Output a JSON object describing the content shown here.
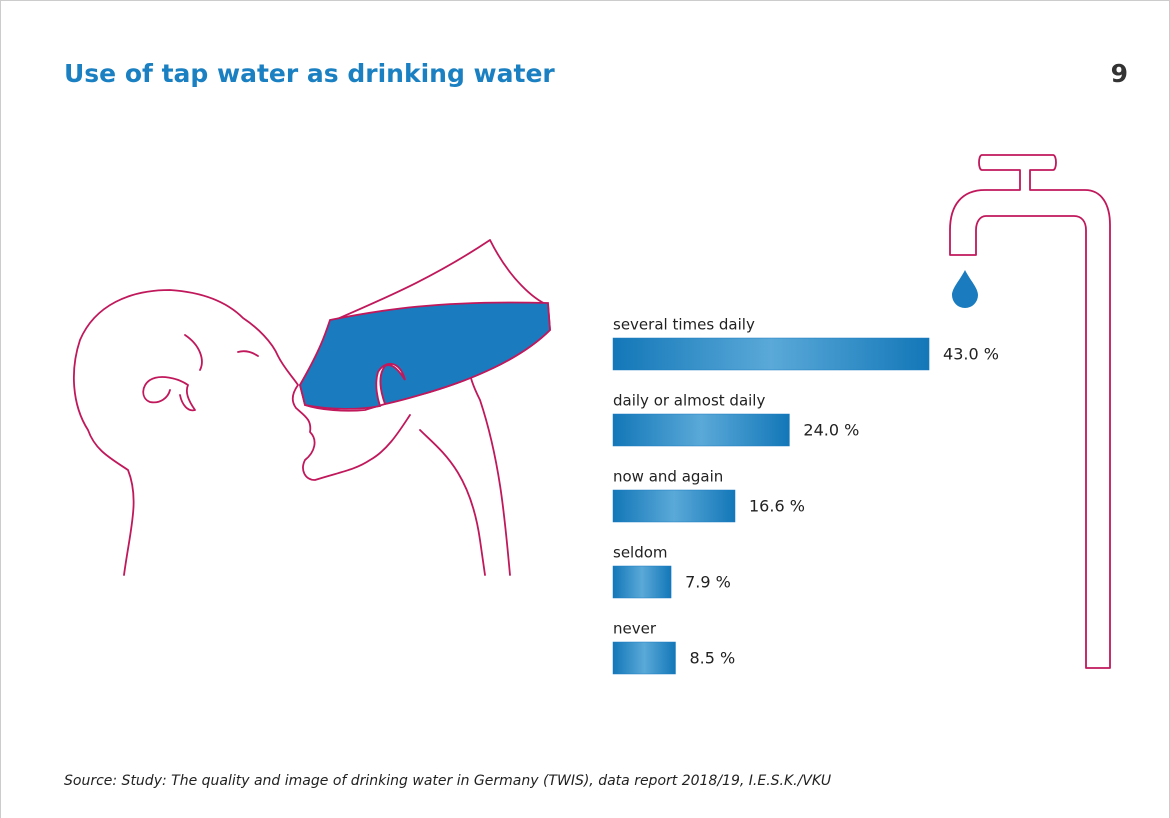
{
  "chart_data": {
    "type": "bar",
    "orientation": "horizontal",
    "title": "Use of tap water as drinking water",
    "page_number": 9,
    "categories": [
      "several times daily",
      "daily or almost daily",
      "now and again",
      "seldom",
      "never"
    ],
    "values": [
      43.0,
      24.0,
      16.6,
      7.9,
      8.5
    ],
    "value_labels": [
      "43.0 %",
      "24.0 %",
      "16.6 %",
      "7.9 %",
      "8.5 %"
    ],
    "color": "#1a7bbf",
    "source": "Source: Study: The quality and image of drinking water in Germany (TWIS), data report 2018/19, I.E.S.K./VKU"
  }
}
